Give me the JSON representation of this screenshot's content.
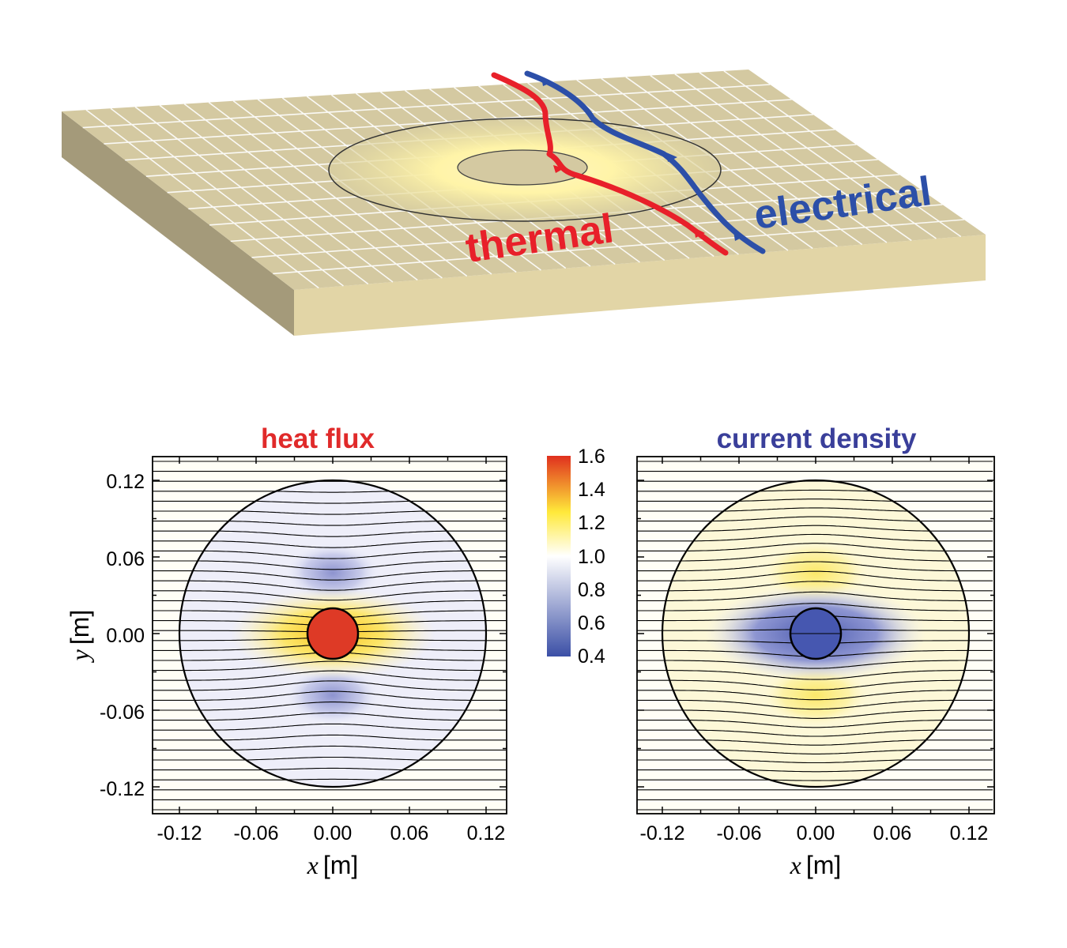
{
  "illustration": {
    "label_thermal": "thermal",
    "label_electrical": "electrical",
    "colors": {
      "thermal": "#e8202a",
      "electrical": "#2c4fa8",
      "slab": "#d9cfa0"
    }
  },
  "colorbar": {
    "ticks": [
      "1.6",
      "1.4",
      "1.2",
      "1.0",
      "0.8",
      "0.6",
      "0.4"
    ],
    "range": [
      0.4,
      1.6
    ],
    "colors": [
      "#3b4fa6",
      "#ffffff",
      "#ffe93a",
      "#e0301e"
    ]
  },
  "axes": {
    "x_var": "x",
    "y_var": "y",
    "unit": "[m]",
    "x_ticks": [
      "-0.12",
      "-0.06",
      "0.00",
      "0.06",
      "0.12"
    ],
    "y_ticks": [
      "0.12",
      "0.06",
      "0.00",
      "-0.06",
      "-0.12"
    ]
  },
  "chart_data": [
    {
      "type": "heatmap",
      "title": "heat flux",
      "title_color": "#e02a2a",
      "xlabel": "x [m]",
      "ylabel": "y [m]",
      "xlim": [
        -0.14,
        0.14
      ],
      "ylim": [
        -0.14,
        0.14
      ],
      "outer_radius": 0.12,
      "inner_radius": 0.02,
      "core_value": 1.6,
      "streamlines": "horizontal, converging toward core"
    },
    {
      "type": "heatmap",
      "title": "current density",
      "title_color": "#3a3f9a",
      "xlabel": "x [m]",
      "ylabel": "",
      "xlim": [
        -0.14,
        0.14
      ],
      "ylim": [
        -0.14,
        0.14
      ],
      "outer_radius": 0.12,
      "inner_radius": 0.02,
      "core_value": 0.4,
      "streamlines": "horizontal, diverging around core"
    }
  ]
}
